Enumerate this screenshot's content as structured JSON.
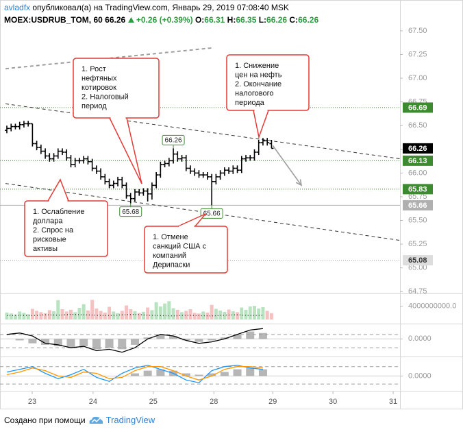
{
  "header": {
    "author": "avladfx",
    "published": "опубликовал(а) на TradingView.com, Январь 29, 2019 07:08:40 MSK"
  },
  "legend": {
    "symbol": "MOEX:USDRUB_TOM, 60",
    "last": "66.26",
    "change": "+0.26 (+0.39%)",
    "ohlc": [
      {
        "label": "O:",
        "value": "66.31"
      },
      {
        "label": "H:",
        "value": "66.35"
      },
      {
        "label": "L:",
        "value": "66.26"
      },
      {
        "label": "C:",
        "value": "66.26"
      }
    ]
  },
  "footer": {
    "text": "Создано при помощи",
    "brand": "TradingView"
  },
  "chart_data": [
    {
      "type": "ohlc",
      "color": "#000000",
      "x": [
        0,
        1,
        2,
        3,
        4,
        5,
        6,
        7,
        8,
        9,
        10,
        11,
        12,
        13,
        14,
        15,
        16,
        17,
        18,
        19,
        20,
        21,
        22,
        23,
        24,
        25,
        26,
        27,
        28,
        29,
        30,
        31,
        32,
        33,
        34,
        35,
        36,
        37,
        38,
        39,
        40,
        41,
        42,
        43,
        44,
        45,
        46,
        47,
        48,
        49,
        50,
        51,
        52,
        53,
        54,
        55,
        56,
        57,
        58,
        59,
        60,
        61,
        62
      ],
      "open": [
        66.45,
        66.47,
        66.49,
        66.49,
        66.51,
        66.52,
        66.52,
        66.31,
        66.27,
        66.23,
        66.18,
        66.15,
        66.18,
        66.23,
        66.22,
        66.16,
        66.09,
        66.13,
        66.13,
        66.15,
        66.12,
        66.05,
        66.02,
        65.96,
        65.91,
        65.87,
        65.89,
        65.93,
        65.87,
        65.76,
        65.73,
        65.8,
        65.79,
        65.81,
        65.78,
        65.87,
        65.98,
        66.09,
        66.1,
        66.13,
        66.2,
        66.15,
        66.16,
        66.05,
        66.02,
        66.0,
        65.98,
        65.98,
        65.96,
        65.91,
        65.96,
        66.0,
        66.03,
        66.02,
        66.05,
        66.03,
        66.15,
        66.16,
        66.16,
        66.22,
        66.32,
        66.34,
        66.31
      ],
      "high": [
        66.5,
        66.52,
        66.52,
        66.54,
        66.55,
        66.55,
        66.52,
        66.34,
        66.3,
        66.26,
        66.21,
        66.21,
        66.26,
        66.26,
        66.25,
        66.19,
        66.16,
        66.16,
        66.18,
        66.18,
        66.15,
        66.08,
        66.05,
        65.99,
        65.94,
        65.92,
        65.96,
        65.96,
        65.9,
        65.79,
        65.83,
        65.83,
        65.84,
        65.84,
        65.9,
        66.01,
        66.12,
        66.13,
        66.16,
        66.26,
        66.23,
        66.19,
        66.19,
        66.08,
        66.05,
        66.03,
        66.01,
        66.01,
        65.99,
        65.99,
        66.03,
        66.06,
        66.06,
        66.08,
        66.08,
        66.18,
        66.19,
        66.19,
        66.25,
        66.35,
        66.37,
        66.37,
        66.35
      ],
      "low": [
        66.42,
        66.44,
        66.46,
        66.46,
        66.48,
        66.49,
        66.28,
        66.24,
        66.2,
        66.15,
        66.12,
        66.12,
        66.15,
        66.19,
        66.13,
        66.06,
        66.06,
        66.1,
        66.1,
        66.09,
        66.02,
        65.99,
        65.93,
        65.88,
        65.84,
        65.84,
        65.86,
        65.84,
        65.73,
        65.68,
        65.7,
        65.76,
        65.76,
        65.7,
        65.72,
        65.84,
        65.95,
        66.06,
        66.07,
        66.1,
        66.12,
        66.12,
        66.02,
        65.99,
        65.97,
        65.95,
        65.95,
        65.93,
        65.66,
        65.88,
        65.93,
        65.97,
        65.99,
        65.99,
        66.0,
        66.0,
        66.12,
        66.13,
        66.13,
        66.19,
        66.29,
        66.29,
        66.26
      ],
      "close": [
        66.47,
        66.49,
        66.49,
        66.51,
        66.52,
        66.52,
        66.31,
        66.27,
        66.23,
        66.18,
        66.15,
        66.18,
        66.23,
        66.22,
        66.16,
        66.09,
        66.13,
        66.13,
        66.15,
        66.12,
        66.05,
        66.02,
        65.96,
        65.91,
        65.87,
        65.89,
        65.93,
        65.87,
        65.76,
        65.73,
        65.8,
        65.79,
        65.81,
        65.78,
        65.87,
        65.98,
        66.09,
        66.1,
        66.13,
        66.2,
        66.15,
        66.16,
        66.05,
        66.02,
        66.0,
        65.98,
        65.98,
        65.96,
        65.91,
        65.96,
        66.0,
        66.03,
        66.02,
        66.05,
        66.03,
        66.15,
        66.16,
        66.16,
        66.22,
        66.32,
        66.34,
        66.32,
        66.26
      ],
      "xlim": [
        -0.32,
        92.1
      ],
      "xticks": [
        {
          "value": 5.94,
          "label": "23"
        },
        {
          "value": 20.2,
          "label": "24"
        },
        {
          "value": 34.3,
          "label": "25"
        },
        {
          "value": 48.5,
          "label": "28"
        },
        {
          "value": 62.3,
          "label": "29"
        },
        {
          "value": 76.4,
          "label": "30"
        },
        {
          "value": 90.5,
          "label": "31"
        }
      ],
      "ylim": [
        64.73,
        67.55
      ],
      "yticks": [
        64.75,
        {
          "value": 65,
          "label": "65.00"
        },
        65.25,
        {
          "value": 65.5,
          "label": "65.50"
        },
        65.75,
        {
          "value": 66,
          "label": "66.00"
        },
        66.25,
        {
          "value": 66.5,
          "label": "66.50"
        },
        66.75,
        {
          "value": 67,
          "label": "67.00"
        },
        67.25,
        {
          "value": 67.5,
          "label": "67.50"
        }
      ],
      "levels": [
        {
          "value": 66.69,
          "color": "#3d8b2f",
          "style": "dotted",
          "label_bg": "#3d8b2f",
          "label_fg": "#ffffff"
        },
        {
          "value": 66.13,
          "color": "#3d8b2f",
          "style": "dotted",
          "label_bg": "#3d8b2f",
          "label_fg": "#ffffff"
        },
        {
          "value": 65.83,
          "color": "#3d8b2f",
          "style": "dotted",
          "label_bg": "#3d8b2f",
          "label_fg": "#ffffff"
        },
        {
          "value": 65.66,
          "color": "#b0b0b0",
          "style": "solid",
          "label_bg": "#b0b0b0",
          "label_fg": "#ffffff"
        },
        {
          "value": 65.08,
          "color": "#9e9e9e",
          "style": "dotted",
          "label_bg": "#dddddd",
          "label_fg": "#333333"
        }
      ],
      "last": {
        "value": 66.26,
        "label_bg": "#000000",
        "label_fg": "#ffffff"
      },
      "trend_lines": [
        {
          "x": [
            -0.32,
            92.1
          ],
          "y": [
            66.73,
            66.15
          ],
          "color": "#333333",
          "width": 1,
          "style": "dashed"
        },
        {
          "x": [
            -0.32,
            92.1
          ],
          "y": [
            65.89,
            65.29
          ],
          "color": "#333333",
          "width": 1,
          "style": "dashed"
        },
        {
          "x": [
            -0.32,
            48.2
          ],
          "y": [
            67.1,
            67.32
          ],
          "color": "#9e9e9e",
          "width": 2,
          "style": "dashed"
        }
      ],
      "arrow": {
        "x": [
          62.3,
          69.0
        ],
        "y": [
          66.29,
          65.87
        ],
        "color": "#9e9e9e"
      },
      "price_labels": [
        {
          "x": 39,
          "value": 66.26,
          "side": "above"
        },
        {
          "x": 29,
          "value": 65.68,
          "side": "below"
        },
        {
          "x": 48,
          "value": 65.66,
          "side": "below"
        }
      ],
      "annotations": [
        {
          "lines": [
            "1. Рост",
            "нефтяных",
            "котировок",
            "2. Налоговый",
            "период"
          ]
        },
        {
          "lines": [
            "1. Снижение",
            "цен на нефть",
            "2. Окончание",
            "налогового",
            "периода"
          ]
        },
        {
          "lines": [
            "1. Ослабление",
            "доллара",
            "2. Спрос на",
            "рисковые",
            "активы"
          ]
        },
        {
          "lines": [
            "1. Отмене",
            "санкций США  с",
            "компаний",
            "Дерипаски"
          ]
        }
      ]
    },
    {
      "type": "bar",
      "up_color": "#b9e3c0",
      "down_color": "#f5c2c2",
      "values": [
        2100000000.0,
        1800000000.0,
        1500000000.0,
        2400000000.0,
        2000000000.0,
        1600000000.0,
        3200000000.0,
        2600000000.0,
        2200000000.0,
        1900000000.0,
        2800000000.0,
        2500000000.0,
        5800000000.0,
        3100000000.0,
        2400000000.0,
        2900000000.0,
        2200000000.0,
        3500000000.0,
        4600000000.0,
        2700000000.0,
        5900000000.0,
        3300000000.0,
        2600000000.0,
        2100000000.0,
        3800000000.0,
        2400000000.0,
        1900000000.0,
        2600000000.0,
        4200000000.0,
        3100000000.0,
        2500000000.0,
        2000000000.0,
        2300000000.0,
        3600000000.0,
        2800000000.0,
        5200000000.0,
        3900000000.0,
        4800000000.0,
        5500000000.0,
        3400000000.0,
        2900000000.0,
        2200000000.0,
        2600000000.0,
        3100000000.0,
        2000000000.0,
        1800000000.0,
        2400000000.0,
        2100000000.0,
        4400000000.0,
        3200000000.0,
        2700000000.0,
        2300000000.0,
        3000000000.0,
        2500000000.0,
        2200000000.0,
        3600000000.0,
        2900000000.0,
        3900000000.0,
        4100000000.0,
        3300000000.0,
        3700000000.0,
        2600000000.0,
        1900000000.0
      ],
      "ma": {
        "x": [
          0,
          3,
          6,
          9,
          12,
          15,
          18,
          21,
          24,
          27,
          30,
          33,
          36,
          39,
          42,
          45,
          48,
          51,
          54,
          57,
          60
        ],
        "values": [
          1200000000.0,
          1300000000.0,
          1200000000.0,
          1400000000.0,
          1300000000.0,
          1500000000.0,
          1400000000.0,
          1300000000.0,
          1200000000.0,
          1400000000.0,
          1500000000.0,
          1300000000.0,
          1200000000.0,
          1100000000.0,
          1300000000.0,
          1200000000.0,
          1100000000.0,
          1300000000.0,
          1400000000.0,
          1200000000.0,
          1300000000.0
        ],
        "color": "#333333"
      },
      "ylim": [
        0,
        7000000000
      ],
      "yticks": [
        {
          "value": 4000000000,
          "label": "4000000000.0"
        }
      ]
    },
    {
      "type": "line",
      "x": [
        0,
        3,
        6,
        9,
        12,
        15,
        18,
        21,
        24,
        27,
        30,
        33,
        36,
        39,
        42,
        45,
        48,
        51,
        54,
        57,
        60
      ],
      "series": [
        {
          "color": "#000000",
          "values": [
            0.03,
            0.04,
            0.02,
            -0.03,
            -0.04,
            -0.06,
            -0.05,
            -0.08,
            -0.07,
            -0.09,
            -0.06,
            0.0,
            0.03,
            0.02,
            -0.01,
            -0.03,
            -0.02,
            0.0,
            0.03,
            0.06,
            0.07
          ]
        }
      ],
      "histogram": {
        "color": "#9e9e9e",
        "values": [
          0.0,
          -0.01,
          -0.03,
          -0.04,
          -0.05,
          -0.06,
          -0.05,
          -0.07,
          -0.06,
          -0.07,
          -0.04,
          0.01,
          0.03,
          0.02,
          -0.01,
          -0.02,
          -0.01,
          0.01,
          0.03,
          0.05,
          0.04
        ]
      },
      "levels": [
        0.03,
        -0.06
      ],
      "ylim": [
        -0.11,
        0.085
      ],
      "yticks": [
        {
          "value": 0,
          "label": "0.0000"
        }
      ]
    },
    {
      "type": "line",
      "x": [
        0,
        3,
        6,
        9,
        12,
        15,
        18,
        21,
        24,
        27,
        30,
        33,
        36,
        39,
        42,
        45,
        48,
        51,
        54,
        57,
        60
      ],
      "series": [
        {
          "color": "#2196f3",
          "values": [
            0.03,
            0.05,
            0.07,
            0.02,
            -0.02,
            0.01,
            0.05,
            -0.01,
            -0.04,
            0.02,
            0.06,
            0.08,
            0.05,
            0.02,
            -0.03,
            -0.05,
            0.04,
            0.07,
            0.08,
            0.06,
            0.05
          ]
        },
        {
          "color": "#ff9800",
          "values": [
            0.01,
            0.03,
            0.06,
            0.04,
            0.0,
            -0.01,
            0.03,
            0.02,
            -0.02,
            -0.01,
            0.04,
            0.07,
            0.07,
            0.04,
            0.0,
            -0.03,
            0.0,
            0.05,
            0.07,
            0.07,
            0.06
          ]
        }
      ],
      "histogram": {
        "color": "#9e9e9e",
        "values": [
          0,
          0,
          0,
          0,
          0,
          0,
          0,
          0,
          0,
          0,
          0.02,
          0.04,
          0.05,
          0.04,
          0.02,
          0.01,
          0.02,
          0.03,
          0.05,
          0.06,
          0.05
        ]
      },
      "levels": [
        0.07,
        -0.06
      ],
      "ylim": [
        -0.1,
        0.13
      ],
      "yticks": [
        {
          "value": 0,
          "label": "0.0000"
        }
      ]
    }
  ]
}
